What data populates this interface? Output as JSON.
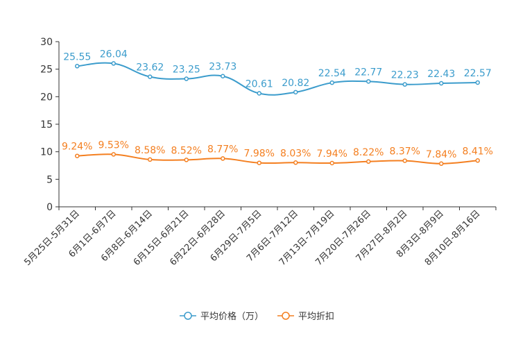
{
  "chart_data": {
    "type": "line",
    "categories": [
      "5月25日-5月31日",
      "6月1日-6月7日",
      "6月8日-6月14日",
      "6月15日-6月21日",
      "6月22日-6月28日",
      "6月29日-7月5日",
      "7月6日-7月12日",
      "7月13日-7月19日",
      "7月20日-7月26日",
      "7月27日-8月2日",
      "8月3日-8月9日",
      "8月10日-8月16日"
    ],
    "ylim": [
      0,
      30
    ],
    "yticks": [
      "0",
      "5",
      "10",
      "15",
      "20",
      "25",
      "30"
    ],
    "series": [
      {
        "name": "平均价格（万）",
        "color": "#3b9ccc",
        "values": [
          25.55,
          26.04,
          23.62,
          23.25,
          23.73,
          20.61,
          20.82,
          22.54,
          22.77,
          22.23,
          22.43,
          22.57
        ],
        "labels": [
          "25.55",
          "26.04",
          "23.62",
          "23.25",
          "23.73",
          "20.61",
          "20.82",
          "22.54",
          "22.77",
          "22.23",
          "22.43",
          "22.57"
        ]
      },
      {
        "name": "平均折扣",
        "color": "#f47f20",
        "values": [
          9.24,
          9.53,
          8.58,
          8.52,
          8.77,
          7.98,
          8.03,
          7.94,
          8.22,
          8.37,
          7.84,
          8.41
        ],
        "labels": [
          "9.24%",
          "9.53%",
          "8.58%",
          "8.52%",
          "8.77%",
          "7.98%",
          "8.03%",
          "7.94%",
          "8.22%",
          "8.37%",
          "7.84%",
          "8.41%"
        ]
      }
    ],
    "legend": {
      "position": "bottom",
      "items": [
        "平均价格（万）",
        "平均折扣"
      ]
    }
  }
}
